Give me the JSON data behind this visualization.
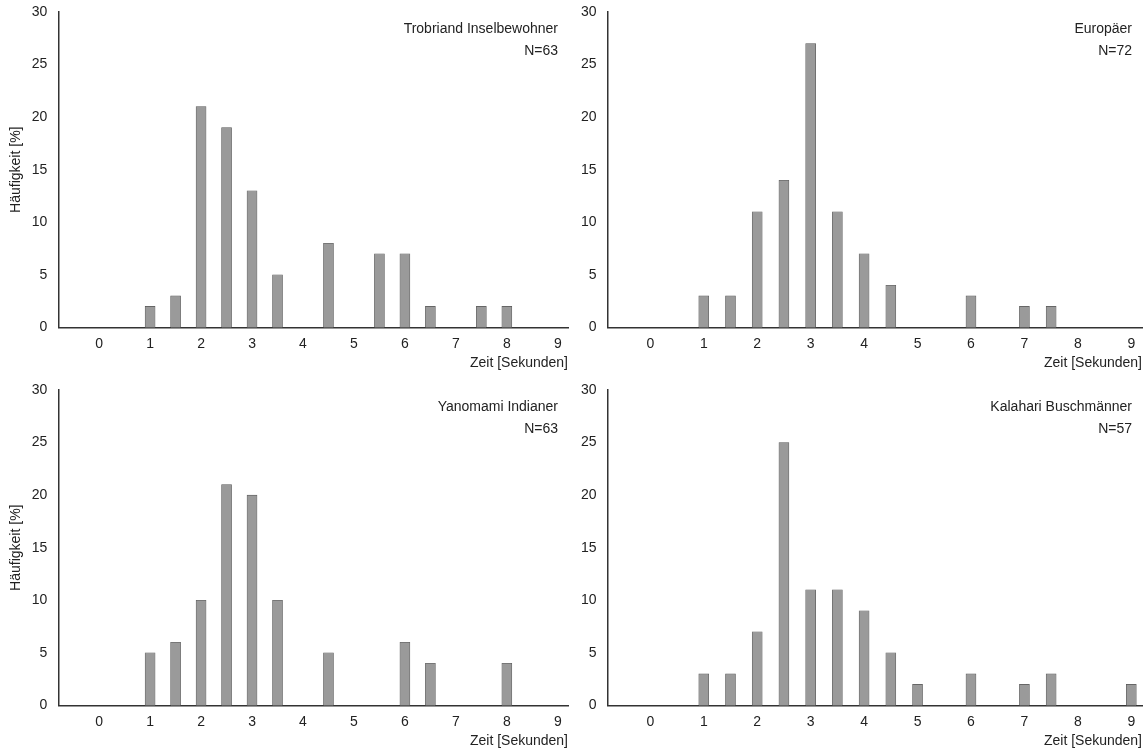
{
  "chart_data": [
    {
      "type": "bar",
      "x": [
        1,
        1.5,
        2,
        2.5,
        3,
        3.5,
        4.5,
        5.5,
        6,
        6.5,
        7.5,
        8
      ],
      "values": [
        2,
        3,
        21,
        19,
        13,
        5,
        8,
        7,
        7,
        2,
        2,
        2
      ],
      "color": "#9a9a9a",
      "ylabel": "Häufigkeit [%]",
      "xlabel": "Zeit [Sekunden]",
      "xlim": [
        -0.8,
        9.2
      ],
      "xticks": [
        0,
        1,
        2,
        3,
        4,
        5,
        6,
        7,
        8,
        9
      ],
      "ylim": [
        0,
        30
      ],
      "yticks": [
        0,
        5,
        10,
        15,
        20,
        25,
        30
      ],
      "grid": false,
      "legend": false,
      "annotations": [
        "Trobriand Inselbewohner",
        "N=63"
      ]
    },
    {
      "type": "bar",
      "x": [
        1,
        1.5,
        2,
        2.5,
        3,
        3.5,
        4,
        4.5,
        6,
        7,
        7.5
      ],
      "values": [
        3,
        3,
        11,
        14,
        27,
        11,
        7,
        4,
        3,
        2,
        2
      ],
      "color": "#9a9a9a",
      "xlabel": "Zeit [Sekunden]",
      "xlim": [
        -0.8,
        9.2
      ],
      "xticks": [
        0,
        1,
        2,
        3,
        4,
        5,
        6,
        7,
        8,
        9
      ],
      "ylim": [
        0,
        30
      ],
      "yticks": [
        0,
        5,
        10,
        15,
        20,
        25,
        30
      ],
      "grid": false,
      "legend": false,
      "annotations": [
        "Europäer",
        "N=72"
      ]
    },
    {
      "type": "bar",
      "x": [
        1,
        1.5,
        2,
        2.5,
        3,
        3.5,
        4.5,
        6,
        6.5,
        8
      ],
      "values": [
        5,
        6,
        10,
        21,
        20,
        10,
        5,
        6,
        4,
        4
      ],
      "color": "#9a9a9a",
      "ylabel": "Häufigkeit [%]",
      "xlabel": "Zeit [Sekunden]",
      "xlim": [
        -0.8,
        9.2
      ],
      "xticks": [
        0,
        1,
        2,
        3,
        4,
        5,
        6,
        7,
        8,
        9
      ],
      "ylim": [
        0,
        30
      ],
      "yticks": [
        0,
        5,
        10,
        15,
        20,
        25,
        30
      ],
      "grid": false,
      "legend": false,
      "annotations": [
        "Yanomami Indianer",
        "N=63"
      ]
    },
    {
      "type": "bar",
      "x": [
        1,
        1.5,
        2,
        2.5,
        3,
        3.5,
        4,
        4.5,
        5,
        6,
        7,
        7.5,
        9
      ],
      "values": [
        3,
        3,
        7,
        25,
        11,
        11,
        9,
        5,
        2,
        3,
        2,
        3,
        2
      ],
      "color": "#9a9a9a",
      "xlabel": "Zeit [Sekunden]",
      "xlim": [
        -0.8,
        9.2
      ],
      "xticks": [
        0,
        1,
        2,
        3,
        4,
        5,
        6,
        7,
        8,
        9
      ],
      "ylim": [
        0,
        30
      ],
      "yticks": [
        0,
        5,
        10,
        15,
        20,
        25,
        30
      ],
      "grid": false,
      "legend": false,
      "annotations": [
        "Kalahari Buschmänner",
        "N=57"
      ]
    }
  ]
}
